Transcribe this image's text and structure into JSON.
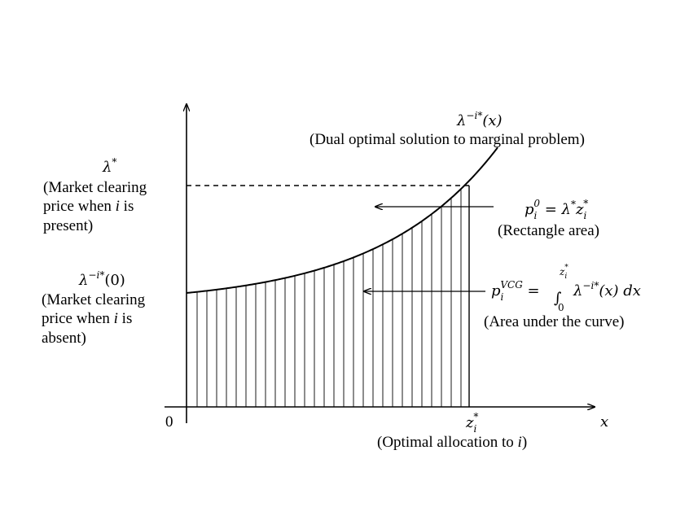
{
  "lambda_star": {
    "symbol": "λ",
    "sup": "*",
    "desc_lines": [
      "(Market clearing",
      "price when ",
      "present)"
    ],
    "i": "i",
    "is": " is"
  },
  "lambda_zero": {
    "symbol": "λ",
    "sup": "−i*",
    "arg": "(0)",
    "desc_lines": [
      "(Market clearing",
      "price when ",
      "absent)"
    ],
    "i": "i",
    "is": " is"
  },
  "curve_label": {
    "symbol": "λ",
    "sup": "−i*",
    "arg": "(x)",
    "desc": "(Dual optimal solution to marginal problem)"
  },
  "p0": {
    "p": "p",
    "sub": "i",
    "sup": "0",
    "eq": " = λ",
    "star": "*",
    "z": "z",
    "zsub": "i",
    "zsup": "*",
    "desc": "(Rectangle area)"
  },
  "pvcg": {
    "p": "p",
    "sub": "i",
    "sup": "VCG",
    "eq": " = ",
    "integral": "∫",
    "upper_z": "z",
    "upper_sub": "i",
    "upper_sup": "*",
    "lower": "0",
    "integrand": "λ",
    "integrand_sup": "−i*",
    "tail": "(x) dx",
    "desc": "(Area under the curve)"
  },
  "axes": {
    "origin": "0",
    "x_label": "x"
  },
  "z_star": {
    "z": "z",
    "sub": "i",
    "sup": "*",
    "desc_prefix": "(Optimal allocation to ",
    "desc_i": "i",
    "desc_suffix": ")"
  }
}
